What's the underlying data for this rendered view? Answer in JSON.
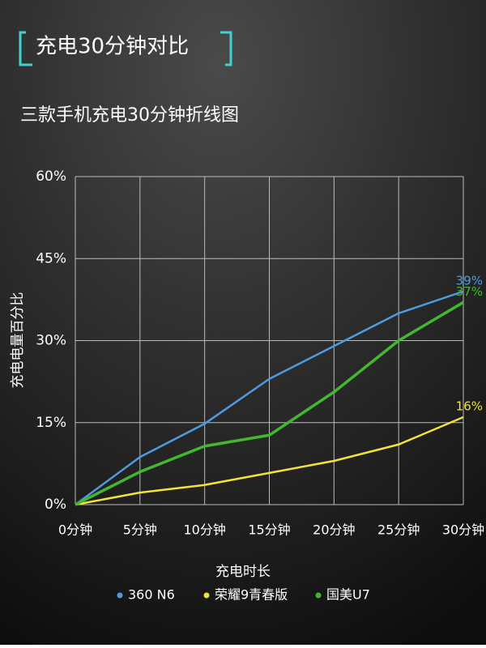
{
  "header": {
    "title": "充电30分钟对比"
  },
  "chart_data": {
    "type": "line",
    "title": "三款手机充电30分钟折线图",
    "x_label": "充电时长",
    "y_label": "充电电量百分比",
    "categories": [
      "0分钟",
      "5分钟",
      "10分钟",
      "15分钟",
      "20分钟",
      "25分钟",
      "30分钟"
    ],
    "series": [
      {
        "name": "360 N6",
        "color": "#4f9be0",
        "values": [
          0,
          8.7,
          14.8,
          23,
          29,
          35,
          39
        ],
        "value_labels": [
          null,
          null,
          null,
          null,
          null,
          null,
          "39%"
        ]
      },
      {
        "name": "荣耀9青春版",
        "color": "#f2e33a",
        "values": [
          0,
          2.2,
          3.6,
          5.8,
          8,
          11,
          16
        ],
        "value_labels": [
          null,
          null,
          null,
          null,
          null,
          null,
          "16%"
        ]
      },
      {
        "name": "国美U7",
        "color": "#42b82f",
        "values": [
          0,
          6,
          10.7,
          12.7,
          20.6,
          30,
          37
        ],
        "value_labels": [
          null,
          null,
          null,
          null,
          null,
          null,
          "37%"
        ]
      }
    ],
    "ylim": [
      0,
      60
    ],
    "yticks": [
      {
        "value": 0,
        "label": "0%"
      },
      {
        "value": 15,
        "label": "15%"
      },
      {
        "value": 30,
        "label": "30%"
      },
      {
        "value": 45,
        "label": "45%"
      },
      {
        "value": 60,
        "label": "60%"
      }
    ],
    "grid": true,
    "legend": "bottom"
  }
}
